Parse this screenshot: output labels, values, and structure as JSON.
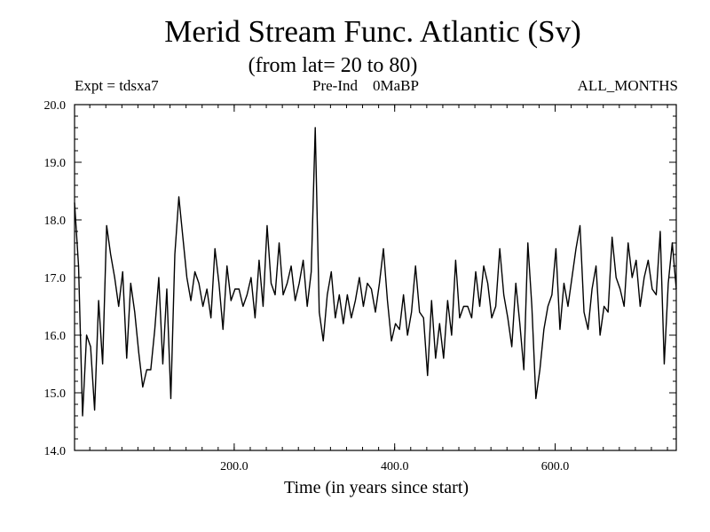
{
  "chart_data": {
    "type": "line",
    "title": "Merid Stream Func. Atlantic (Sv)",
    "subtitle": "(from lat= 20 to 80)",
    "left_label": "Expt = tdsxa7",
    "center_label": "Pre-Ind    0MaBP",
    "right_label": "ALL_MONTHS",
    "xlabel": "Time (in years since start)",
    "ylabel": "",
    "xlim": [
      1,
      751
    ],
    "ylim": [
      14.0,
      20.0
    ],
    "x_ticks": [
      200,
      400,
      600
    ],
    "x_tick_labels": [
      "200.0",
      "400.0",
      "600.0"
    ],
    "y_ticks": [
      14,
      15,
      16,
      17,
      18,
      19,
      20
    ],
    "y_tick_labels": [
      "14.0",
      "15.0",
      "16.0",
      "17.0",
      "18.0",
      "19.0",
      "20.0"
    ],
    "grid": false,
    "series": [
      {
        "name": "Merid Stream Func. Atlantic",
        "color": "#000000",
        "x_start": 1,
        "x_step": 5,
        "values": [
          18.3,
          17.2,
          14.6,
          16.0,
          15.8,
          14.7,
          16.6,
          15.5,
          17.9,
          17.4,
          17.0,
          16.5,
          17.1,
          15.6,
          16.9,
          16.4,
          15.7,
          15.1,
          15.4,
          15.4,
          16.1,
          17.0,
          15.5,
          16.8,
          14.9,
          17.4,
          18.4,
          17.7,
          17.0,
          16.6,
          17.1,
          16.9,
          16.5,
          16.8,
          16.3,
          17.5,
          16.9,
          16.1,
          17.2,
          16.6,
          16.8,
          16.8,
          16.5,
          16.7,
          17.0,
          16.3,
          17.3,
          16.5,
          17.9,
          16.9,
          16.7,
          17.6,
          16.7,
          16.9,
          17.2,
          16.6,
          16.9,
          17.3,
          16.5,
          17.1,
          19.6,
          16.4,
          15.9,
          16.7,
          17.1,
          16.3,
          16.7,
          16.2,
          16.7,
          16.3,
          16.6,
          17.0,
          16.5,
          16.9,
          16.8,
          16.4,
          16.9,
          17.5,
          16.6,
          15.9,
          16.2,
          16.1,
          16.7,
          16.0,
          16.4,
          17.2,
          16.4,
          16.3,
          15.3,
          16.6,
          15.6,
          16.2,
          15.6,
          16.6,
          16.0,
          17.3,
          16.3,
          16.5,
          16.5,
          16.3,
          17.1,
          16.5,
          17.2,
          16.9,
          16.3,
          16.5,
          17.5,
          16.7,
          16.3,
          15.8,
          16.9,
          16.2,
          15.4,
          17.6,
          16.5,
          14.9,
          15.4,
          16.1,
          16.5,
          16.7,
          17.5,
          16.1,
          16.9,
          16.5,
          17.0,
          17.5,
          17.9,
          16.4,
          16.1,
          16.8,
          17.2,
          16.0,
          16.5,
          16.4,
          17.7,
          17.0,
          16.8,
          16.5,
          17.6,
          17.0,
          17.3,
          16.5,
          17.0,
          17.3,
          16.8,
          16.7,
          17.8,
          15.5,
          16.9,
          17.6,
          16.8
        ]
      }
    ]
  }
}
